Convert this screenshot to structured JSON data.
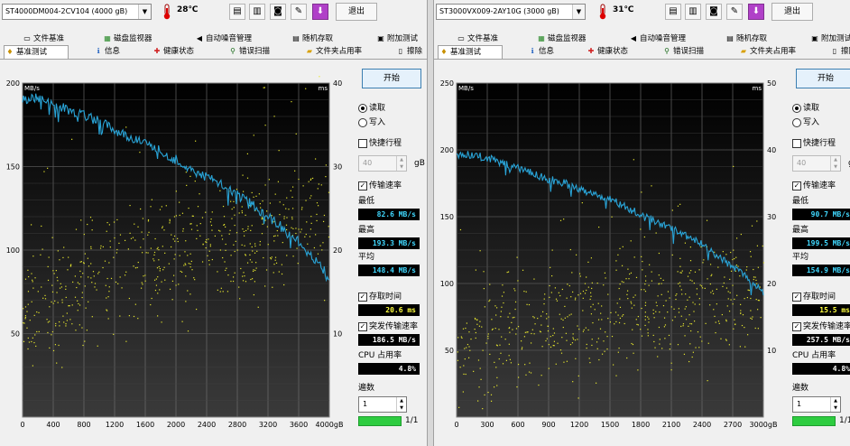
{
  "windows": [
    {
      "drive_select": "ST4000DM004-2CV104 (4000 gB)",
      "temperature": "28℃",
      "exit_label": "退出",
      "tabs_row1": [
        "文件基准",
        "磁盘监视器",
        "自动噪音管理",
        "随机存取",
        "附加测试"
      ],
      "tabs_row2": [
        "基准测试",
        "信息",
        "健康状态",
        "错误扫描",
        "文件夹占用率",
        "擦除"
      ],
      "start_label": "开始",
      "read_label": "读取",
      "write_label": "写入",
      "quick_label": "快捷行程",
      "quick_value": "40",
      "quick_unit": "gB",
      "transfer_label": "传输速率",
      "min_label": "最低",
      "min_value": "82.6 MB/s",
      "max_label": "最高",
      "max_value": "193.3 MB/s",
      "avg_label": "平均",
      "avg_value": "148.4 MB/s",
      "access_label": "存取时间",
      "access_value": "20.6 ms",
      "burst_label": "突发传输速率",
      "burst_value": "186.5 MB/s",
      "cpu_label": "CPU 占用率",
      "cpu_value": "4.8%",
      "passes_label": "遍数",
      "passes_value": "1",
      "progress_text": "1/1",
      "progress_fraction": 1.0,
      "chart_data": {
        "type": "line",
        "y_left_unit": "MB/s",
        "y_right_unit": "ms",
        "x_unit": "gB",
        "xlim": [
          0,
          4000
        ],
        "ylim": [
          0,
          200
        ],
        "y2lim": [
          0,
          40
        ],
        "x_ticks": [
          0,
          400,
          800,
          1200,
          1600,
          2000,
          2400,
          2800,
          3200,
          3600,
          4000
        ],
        "y_ticks": [
          50,
          100,
          150,
          200
        ],
        "y2_ticks": [
          10,
          20,
          30,
          40
        ],
        "series": [
          {
            "role": "transfer_rate",
            "color": "#29a3d6",
            "unit": "MB/s",
            "x": [
              0,
              200,
              400,
              600,
              800,
              1000,
              1200,
              1400,
              1600,
              1800,
              2000,
              2200,
              2400,
              2600,
              2800,
              3000,
              3200,
              3400,
              3600,
              3800,
              4000
            ],
            "y": [
              190,
              191,
              187,
              184,
              181,
              177,
              172,
              168,
              164,
              159,
              154,
              148,
              144,
              139,
              133,
              127,
              120,
              113,
              105,
              95,
              84
            ]
          },
          {
            "role": "access_time",
            "color": "#e6e62e",
            "unit": "ms",
            "style": "scatter",
            "x": [
              0,
              400,
              800,
              1200,
              1600,
              2000,
              2400,
              2800,
              3200,
              3600,
              4000
            ],
            "y": [
              13,
              15,
              17,
              18,
              19,
              20,
              21,
              21,
              22,
              23,
              24
            ]
          }
        ]
      }
    },
    {
      "drive_select": "ST3000VX009-2AY10G (3000 gB)",
      "temperature": "31℃",
      "exit_label": "退出",
      "tabs_row1": [
        "文件基准",
        "磁盘监视器",
        "自动噪音管理",
        "随机存取",
        "附加测试"
      ],
      "tabs_row2": [
        "基准测试",
        "信息",
        "健康状态",
        "错误扫描",
        "文件夹占用率",
        "擦除"
      ],
      "start_label": "开始",
      "read_label": "读取",
      "write_label": "写入",
      "quick_label": "快捷行程",
      "quick_value": "40",
      "quick_unit": "gB",
      "transfer_label": "传输速率",
      "min_label": "最低",
      "min_value": "90.7 MB/s",
      "max_label": "最高",
      "max_value": "199.5 MB/s",
      "avg_label": "平均",
      "avg_value": "154.9 MB/s",
      "access_label": "存取时间",
      "access_value": "15.5 ms",
      "burst_label": "突发传输速率",
      "burst_value": "257.5 MB/s",
      "cpu_label": "CPU 占用率",
      "cpu_value": "4.8%",
      "passes_label": "遍数",
      "passes_value": "1",
      "progress_text": "1/1",
      "progress_fraction": 1.0,
      "chart_data": {
        "type": "line",
        "y_left_unit": "MB/s",
        "y_right_unit": "ms",
        "x_unit": "gB",
        "xlim": [
          0,
          3000
        ],
        "ylim": [
          0,
          250
        ],
        "y2lim": [
          0,
          50
        ],
        "x_ticks": [
          0,
          300,
          600,
          900,
          1200,
          1500,
          1800,
          2100,
          2400,
          2700,
          3000
        ],
        "y_ticks": [
          50,
          100,
          150,
          200,
          250
        ],
        "y2_ticks": [
          10,
          20,
          30,
          40,
          50
        ],
        "series": [
          {
            "role": "transfer_rate",
            "color": "#29a3d6",
            "unit": "MB/s",
            "x": [
              0,
              150,
              300,
              450,
              600,
              750,
              900,
              1050,
              1200,
              1350,
              1500,
              1650,
              1800,
              1950,
              2100,
              2250,
              2400,
              2550,
              2700,
              2850,
              3000
            ],
            "y": [
              197,
              196,
              194,
              190,
              186,
              182,
              178,
              175,
              171,
              167,
              163,
              157,
              152,
              146,
              141,
              135,
              129,
              121,
              113,
              104,
              93
            ]
          },
          {
            "role": "access_time",
            "color": "#e6e62e",
            "unit": "ms",
            "style": "scatter",
            "x": [
              0,
              300,
              600,
              900,
              1200,
              1500,
              1800,
              2100,
              2400,
              2700,
              3000
            ],
            "y": [
              11,
              12,
              13,
              14,
              15,
              16,
              17,
              17,
              18,
              18,
              19
            ]
          }
        ]
      }
    }
  ]
}
